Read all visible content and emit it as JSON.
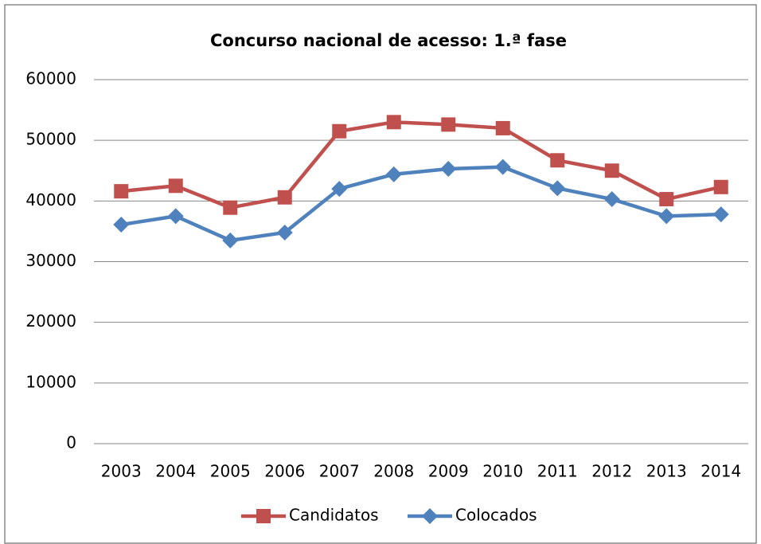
{
  "chart_data": {
    "type": "line",
    "title": "Concurso nacional de acesso: 1.ª fase",
    "categories": [
      "2003",
      "2004",
      "2005",
      "2006",
      "2007",
      "2008",
      "2009",
      "2010",
      "2011",
      "2012",
      "2013",
      "2014"
    ],
    "series": [
      {
        "name": "Candidatos",
        "color": "#c0504d",
        "marker": "square",
        "values": [
          41600,
          42500,
          38900,
          40600,
          51500,
          53000,
          52600,
          52000,
          46700,
          45000,
          40300,
          42300
        ]
      },
      {
        "name": "Colocados",
        "color": "#4f81bd",
        "marker": "diamond",
        "values": [
          36100,
          37500,
          33500,
          34800,
          42000,
          44400,
          45300,
          45600,
          42100,
          40300,
          37500,
          37800
        ]
      }
    ],
    "ylim": [
      0,
      60000
    ],
    "yticks": [
      0,
      10000,
      20000,
      30000,
      40000,
      50000,
      60000
    ],
    "grid": true,
    "legend": "bottom"
  }
}
